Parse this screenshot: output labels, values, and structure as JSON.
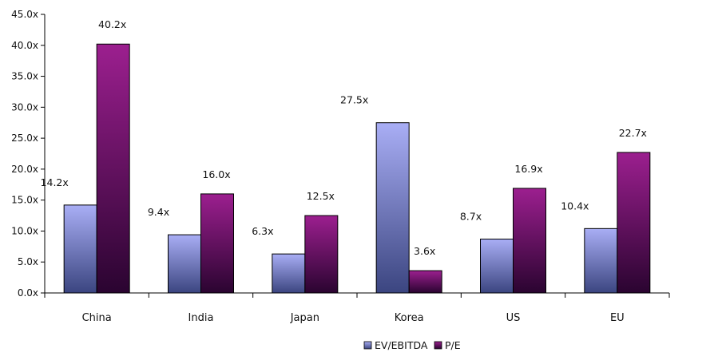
{
  "chart_data": {
    "type": "bar",
    "title": "",
    "xlabel": "",
    "ylabel": "",
    "categories": [
      "China",
      "India",
      "Japan",
      "Korea",
      "US",
      "EU"
    ],
    "series": [
      {
        "name": "EV/EBITDA",
        "values": [
          14.2,
          9.4,
          6.3,
          27.5,
          8.7,
          10.4
        ],
        "labels": [
          "14.2x",
          "9.4x",
          "6.3x",
          "27.5x",
          "8.7x",
          "10.4x"
        ],
        "color_top": "#a9aef5",
        "color_bottom": "#3b4580"
      },
      {
        "name": "P/E",
        "values": [
          40.2,
          16.0,
          12.5,
          3.6,
          16.9,
          22.7
        ],
        "labels": [
          "40.2x",
          "16.0x",
          "12.5x",
          "3.6x",
          "16.9x",
          "22.7x"
        ],
        "color_top": "#9c1f8f",
        "color_bottom": "#2a0430"
      }
    ],
    "ylim": [
      0,
      45
    ],
    "y_ticks": [
      {
        "value": 0,
        "label": "0.0x"
      },
      {
        "value": 5,
        "label": "5.0x"
      },
      {
        "value": 10,
        "label": "10.0x"
      },
      {
        "value": 15,
        "label": "15.0x"
      },
      {
        "value": 20,
        "label": "20.0x"
      },
      {
        "value": 25,
        "label": "25.0x"
      },
      {
        "value": 30,
        "label": "30.0x"
      },
      {
        "value": 35,
        "label": "35.0x"
      },
      {
        "value": 40,
        "label": "40.0x"
      },
      {
        "value": 45,
        "label": "45.0x"
      }
    ],
    "grid": false,
    "legend_position": "bottom-center"
  }
}
